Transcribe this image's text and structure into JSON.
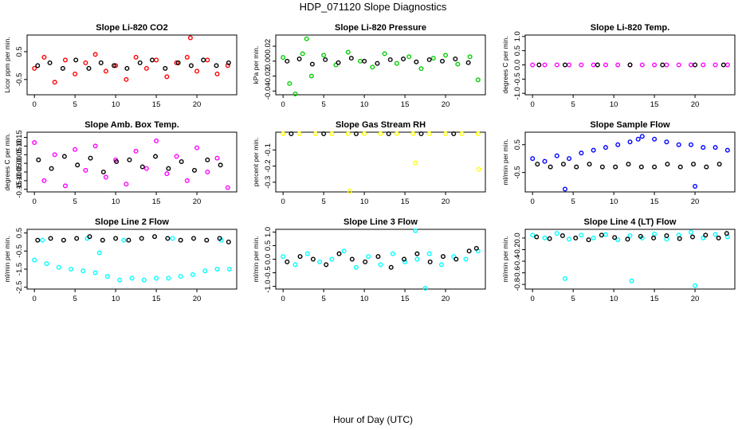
{
  "figure": {
    "title": "HDP_071120  Slope Diagnostics",
    "xlabel": "Hour of Day (UTC)"
  },
  "chart_data": [
    {
      "type": "scatter",
      "title": "Slope Li-820 CO2",
      "ylabel": "Licor ppm per min.",
      "xlim": [
        -0.9,
        24.9
      ],
      "ylim": [
        -1.05,
        1.1
      ],
      "xticks": [
        0,
        5,
        10,
        15,
        20
      ],
      "xtick_labels": [
        "0",
        "5",
        "10",
        "15",
        "20"
      ],
      "yticks": [
        -0.5,
        0.5
      ],
      "ytick_labels": [
        "-0.5",
        "0.5"
      ],
      "series": [
        {
          "color": "#ff0000",
          "x": [
            0.0,
            1.2,
            2.5,
            3.8,
            5.0,
            6.3,
            7.5,
            8.8,
            10.0,
            11.3,
            12.5,
            13.8,
            15.0,
            16.3,
            17.5,
            18.8,
            19.2,
            20.0,
            21.3,
            22.5,
            23.8
          ],
          "y": [
            -0.1,
            0.3,
            -0.6,
            0.2,
            -0.3,
            0.1,
            0.4,
            -0.2,
            0.0,
            -0.5,
            0.3,
            -0.1,
            0.2,
            -0.4,
            0.1,
            0.3,
            1.0,
            -0.2,
            0.2,
            -0.3,
            0.0
          ]
        },
        {
          "color": "#000000",
          "x": [
            0.4,
            1.9,
            3.5,
            5.1,
            6.7,
            8.2,
            9.8,
            11.4,
            13.0,
            14.5,
            16.1,
            17.7,
            19.3,
            20.8,
            22.4,
            23.9
          ],
          "y": [
            0.0,
            0.1,
            -0.1,
            0.2,
            -0.1,
            0.1,
            0.0,
            -0.1,
            0.1,
            0.2,
            -0.1,
            0.1,
            0.0,
            0.2,
            0.0,
            0.1
          ]
        }
      ]
    },
    {
      "type": "scatter",
      "title": "Slope Li-820 Pressure",
      "ylabel": "kPa per min.",
      "xlim": [
        -0.9,
        24.9
      ],
      "ylim": [
        -0.045,
        0.035
      ],
      "xticks": [
        0,
        5,
        10,
        15,
        20
      ],
      "xtick_labels": [
        "0",
        "5",
        "10",
        "15",
        "20"
      ],
      "yticks": [
        -0.04,
        -0.02,
        0.0,
        0.02
      ],
      "ytick_labels": [
        "-0.04",
        "-0.02",
        "0.00",
        "0.02"
      ],
      "series": [
        {
          "color": "#00cc00",
          "x": [
            0.0,
            0.8,
            1.5,
            2.4,
            2.9,
            3.5,
            5.0,
            6.5,
            8.0,
            9.5,
            11.0,
            12.5,
            14.0,
            15.5,
            17.0,
            18.5,
            20.0,
            21.5,
            23.0,
            24.0
          ],
          "y": [
            0.005,
            -0.03,
            -0.045,
            0.01,
            0.03,
            -0.02,
            0.008,
            -0.005,
            0.012,
            0.0,
            -0.008,
            0.01,
            -0.003,
            0.006,
            -0.01,
            0.004,
            0.008,
            -0.004,
            0.006,
            -0.025
          ]
        },
        {
          "color": "#000000",
          "x": [
            0.5,
            2.0,
            3.6,
            5.2,
            6.8,
            8.4,
            10.0,
            11.6,
            13.2,
            14.8,
            16.4,
            18.0,
            19.6,
            21.2,
            22.8
          ],
          "y": [
            0.0,
            0.003,
            -0.004,
            0.002,
            -0.002,
            0.004,
            0.0,
            -0.003,
            0.002,
            0.003,
            -0.001,
            0.002,
            0.0,
            0.003,
            -0.002
          ]
        }
      ]
    },
    {
      "type": "scatter",
      "title": "Slope Li-820 Temp.",
      "ylabel": "degrees C per min.",
      "xlim": [
        -0.9,
        24.9
      ],
      "ylim": [
        -1.05,
        1.05
      ],
      "xticks": [
        0,
        5,
        10,
        15,
        20
      ],
      "xtick_labels": [
        "0",
        "5",
        "10",
        "15",
        "20"
      ],
      "yticks": [
        -1.0,
        -0.5,
        0.0,
        0.5,
        1.0
      ],
      "ytick_labels": [
        "-1.0",
        "-0.5",
        "0.0",
        "0.5",
        "1.0"
      ],
      "series": [
        {
          "color": "#ff00ff",
          "x": [
            0.0,
            1.5,
            3.0,
            4.5,
            6.0,
            7.5,
            9.0,
            10.5,
            12.0,
            13.5,
            15.0,
            16.5,
            18.0,
            19.5,
            21.0,
            22.5,
            24.0
          ],
          "y": [
            0,
            0,
            0,
            0,
            0,
            0,
            0,
            0,
            0,
            0,
            0,
            0,
            0,
            0,
            0,
            0,
            0
          ]
        },
        {
          "color": "#000000",
          "x": [
            0.8,
            4.0,
            8.0,
            12.0,
            16.0,
            20.0,
            23.5
          ],
          "y": [
            0,
            0,
            0,
            0,
            0,
            0,
            0
          ]
        }
      ]
    },
    {
      "type": "scatter",
      "title": "Slope Amb. Box Temp.",
      "ylabel": "degrees C per min.",
      "xlim": [
        -0.9,
        24.9
      ],
      "ylim": [
        -0.165,
        0.18
      ],
      "xticks": [
        0,
        5,
        10,
        15,
        20
      ],
      "xtick_labels": [
        "0",
        "5",
        "10",
        "15",
        "20"
      ],
      "yticks": [
        -0.15,
        -0.1,
        -0.05,
        0.0,
        0.05,
        0.1,
        0.15
      ],
      "ytick_labels": [
        "-0.15",
        "-0.10",
        "-0.05",
        "0.00",
        "0.05",
        "0.10",
        "0.15"
      ],
      "series": [
        {
          "color": "#ff00ff",
          "x": [
            0.0,
            1.2,
            2.5,
            3.8,
            5.0,
            6.3,
            7.5,
            8.8,
            10.0,
            11.3,
            12.5,
            13.8,
            15.0,
            16.3,
            17.5,
            18.8,
            20.0,
            21.3,
            22.5,
            23.8
          ],
          "y": [
            0.12,
            -0.1,
            0.05,
            -0.13,
            0.08,
            -0.04,
            0.1,
            -0.08,
            0.02,
            -0.12,
            0.07,
            -0.03,
            0.13,
            -0.06,
            0.04,
            -0.1,
            0.09,
            -0.05,
            0.03,
            -0.14
          ]
        },
        {
          "color": "#000000",
          "x": [
            0.5,
            2.1,
            3.7,
            5.3,
            6.9,
            8.5,
            10.1,
            11.7,
            13.3,
            14.9,
            16.5,
            18.1,
            19.7,
            21.3,
            22.9
          ],
          "y": [
            0.02,
            -0.03,
            0.04,
            -0.01,
            0.03,
            -0.05,
            0.01,
            0.02,
            -0.02,
            0.04,
            -0.03,
            0.01,
            -0.04,
            0.02,
            -0.01
          ]
        }
      ]
    },
    {
      "type": "scatter",
      "title": "Slope Gas Stream RH",
      "ylabel": "percent per min.",
      "xlim": [
        -0.9,
        24.9
      ],
      "ylim": [
        -0.36,
        0.01
      ],
      "xticks": [
        0,
        5,
        10,
        15,
        20
      ],
      "xtick_labels": [
        "0",
        "5",
        "10",
        "15",
        "20"
      ],
      "yticks": [
        -0.3,
        -0.2,
        -0.1
      ],
      "ytick_labels": [
        "-0.3",
        "-0.2",
        "-0.1"
      ],
      "series": [
        {
          "color": "#ffff00",
          "x": [
            0.0,
            2.0,
            4.0,
            6.0,
            8.0,
            8.2,
            10.0,
            12.0,
            14.0,
            16.0,
            16.3,
            18.0,
            20.0,
            22.0,
            24.0,
            24.1
          ],
          "y": [
            0,
            0,
            0,
            0,
            0,
            -0.36,
            0,
            0,
            0,
            0,
            -0.18,
            0,
            0,
            0,
            0,
            -0.22
          ]
        },
        {
          "color": "#000000",
          "x": [
            1.0,
            5.0,
            9.0,
            13.0,
            17.0,
            21.0
          ],
          "y": [
            0,
            0,
            0,
            0,
            0,
            0
          ]
        }
      ]
    },
    {
      "type": "scatter",
      "title": "Slope Sample Flow",
      "ylabel": "ml/min per min.",
      "xlim": [
        -0.9,
        24.9
      ],
      "ylim": [
        -1.2,
        0.95
      ],
      "xticks": [
        0,
        5,
        10,
        15,
        20
      ],
      "xtick_labels": [
        "0",
        "5",
        "10",
        "15",
        "20"
      ],
      "yticks": [
        -0.5,
        0.5
      ],
      "ytick_labels": [
        "-0.5",
        "0.5"
      ],
      "series": [
        {
          "color": "#0000ff",
          "x": [
            0.0,
            1.5,
            3.0,
            4.0,
            4.5,
            6.0,
            7.5,
            9.0,
            10.5,
            12.0,
            13.0,
            13.5,
            15.0,
            16.5,
            18.0,
            19.5,
            20.0,
            21.0,
            22.5,
            24.0
          ],
          "y": [
            0.0,
            -0.1,
            0.1,
            -1.1,
            0.0,
            0.2,
            0.3,
            0.4,
            0.5,
            0.6,
            0.7,
            0.8,
            0.7,
            0.6,
            0.5,
            0.5,
            -1.0,
            0.4,
            0.4,
            0.3
          ]
        },
        {
          "color": "#000000",
          "x": [
            0.6,
            2.2,
            3.8,
            5.4,
            7.0,
            8.6,
            10.2,
            11.8,
            13.4,
            15.0,
            16.6,
            18.2,
            19.8,
            21.4,
            23.0
          ],
          "y": [
            -0.2,
            -0.3,
            -0.2,
            -0.3,
            -0.2,
            -0.3,
            -0.3,
            -0.2,
            -0.3,
            -0.3,
            -0.2,
            -0.3,
            -0.2,
            -0.3,
            -0.2
          ]
        }
      ]
    },
    {
      "type": "scatter",
      "title": "Slope Line 2 Flow",
      "ylabel": "ml/min per min.",
      "xlim": [
        -0.9,
        24.9
      ],
      "ylim": [
        -2.6,
        0.7
      ],
      "xticks": [
        0,
        5,
        10,
        15,
        20
      ],
      "xtick_labels": [
        "0",
        "5",
        "10",
        "15",
        "20"
      ],
      "yticks": [
        -2.5,
        -1.5,
        -0.5,
        0.5
      ],
      "ytick_labels": [
        "-2.5",
        "-1.5",
        "-0.5",
        "0.5"
      ],
      "series": [
        {
          "color": "#00ffff",
          "x": [
            0.0,
            1.5,
            3.0,
            4.5,
            6.0,
            7.5,
            8.0,
            9.0,
            10.5,
            12.0,
            13.5,
            15.0,
            16.5,
            18.0,
            19.5,
            21.0,
            22.5,
            24.0,
            1.0,
            6.5,
            11.0,
            17.0,
            23.0
          ],
          "y": [
            -1.0,
            -1.2,
            -1.4,
            -1.5,
            -1.6,
            -1.7,
            -0.6,
            -1.9,
            -2.1,
            -2.0,
            -2.1,
            -2.0,
            -2.0,
            -1.9,
            -1.8,
            -1.6,
            -1.5,
            -1.5,
            0.1,
            0.2,
            0.1,
            0.2,
            0.1
          ]
        },
        {
          "color": "#000000",
          "x": [
            0.4,
            2.0,
            3.6,
            5.2,
            6.8,
            8.4,
            10.0,
            11.6,
            13.2,
            14.8,
            16.4,
            18.0,
            19.6,
            21.2,
            22.8,
            23.9
          ],
          "y": [
            0.1,
            0.2,
            0.1,
            0.2,
            0.3,
            0.1,
            0.2,
            0.1,
            0.2,
            0.3,
            0.2,
            0.1,
            0.2,
            0.1,
            0.2,
            0.0
          ]
        }
      ]
    },
    {
      "type": "scatter",
      "title": "Slope Line 3 Flow",
      "ylabel": "ml/min per min.",
      "xlim": [
        -0.9,
        24.9
      ],
      "ylim": [
        -1.1,
        1.1
      ],
      "xticks": [
        0,
        5,
        10,
        15,
        20
      ],
      "xtick_labels": [
        "0",
        "5",
        "10",
        "15",
        "20"
      ],
      "yticks": [
        -1.0,
        -0.5,
        0.0,
        0.5,
        1.0
      ],
      "ytick_labels": [
        "-1.0",
        "-0.5",
        "0.0",
        "0.5",
        "1.0"
      ],
      "series": [
        {
          "color": "#00ffff",
          "x": [
            0.0,
            1.5,
            3.0,
            4.5,
            6.0,
            7.5,
            9.0,
            10.5,
            12.0,
            13.5,
            15.0,
            16.3,
            16.5,
            17.5,
            18.0,
            19.5,
            21.0,
            22.5,
            24.0
          ],
          "y": [
            0.1,
            -0.2,
            0.2,
            -0.1,
            0.0,
            0.3,
            -0.3,
            0.1,
            -0.2,
            0.2,
            -0.1,
            1.05,
            0.0,
            -1.1,
            0.2,
            -0.2,
            0.1,
            0.0,
            0.3
          ]
        },
        {
          "color": "#000000",
          "x": [
            0.5,
            2.1,
            3.7,
            5.3,
            6.9,
            8.5,
            10.1,
            11.7,
            13.3,
            14.9,
            16.5,
            18.1,
            19.7,
            21.3,
            22.9,
            23.8
          ],
          "y": [
            -0.1,
            0.1,
            0.0,
            -0.2,
            0.2,
            0.0,
            -0.1,
            0.1,
            -0.3,
            0.0,
            0.2,
            -0.1,
            0.1,
            0.0,
            0.3,
            0.4
          ]
        }
      ]
    },
    {
      "type": "scatter",
      "title": "Slope Line 4 (LT) Flow",
      "ylabel": "ml/min per min.",
      "xlim": [
        -0.9,
        24.9
      ],
      "ylim": [
        -0.88,
        0.15
      ],
      "xticks": [
        0,
        5,
        10,
        15,
        20
      ],
      "xtick_labels": [
        "0",
        "5",
        "10",
        "15",
        "20"
      ],
      "yticks": [
        -0.8,
        -0.6,
        -0.4,
        -0.2,
        0.0
      ],
      "ytick_labels": [
        "-0.8",
        "-0.6",
        "-0.4",
        "-0.2",
        "0.0"
      ],
      "series": [
        {
          "color": "#00ffff",
          "x": [
            0.0,
            1.5,
            3.0,
            4.0,
            4.5,
            6.0,
            7.5,
            9.0,
            10.5,
            12.0,
            12.2,
            13.5,
            15.0,
            16.5,
            18.0,
            19.5,
            20.0,
            21.0,
            22.5,
            24.0
          ],
          "y": [
            0.05,
            0.0,
            0.08,
            -0.7,
            -0.02,
            0.05,
            0.0,
            0.06,
            -0.03,
            0.04,
            -0.74,
            0.0,
            0.07,
            -0.02,
            0.05,
            0.1,
            -0.82,
            0.0,
            0.06,
            0.02
          ]
        },
        {
          "color": "#000000",
          "x": [
            0.5,
            2.1,
            3.7,
            5.3,
            6.9,
            8.5,
            10.1,
            11.7,
            13.3,
            14.9,
            16.5,
            18.1,
            19.7,
            21.3,
            22.9,
            23.9
          ],
          "y": [
            0.02,
            -0.01,
            0.04,
            0.0,
            -0.03,
            0.05,
            0.01,
            -0.02,
            0.03,
            0.0,
            0.04,
            -0.01,
            0.02,
            0.05,
            0.0,
            0.08
          ]
        }
      ]
    }
  ]
}
